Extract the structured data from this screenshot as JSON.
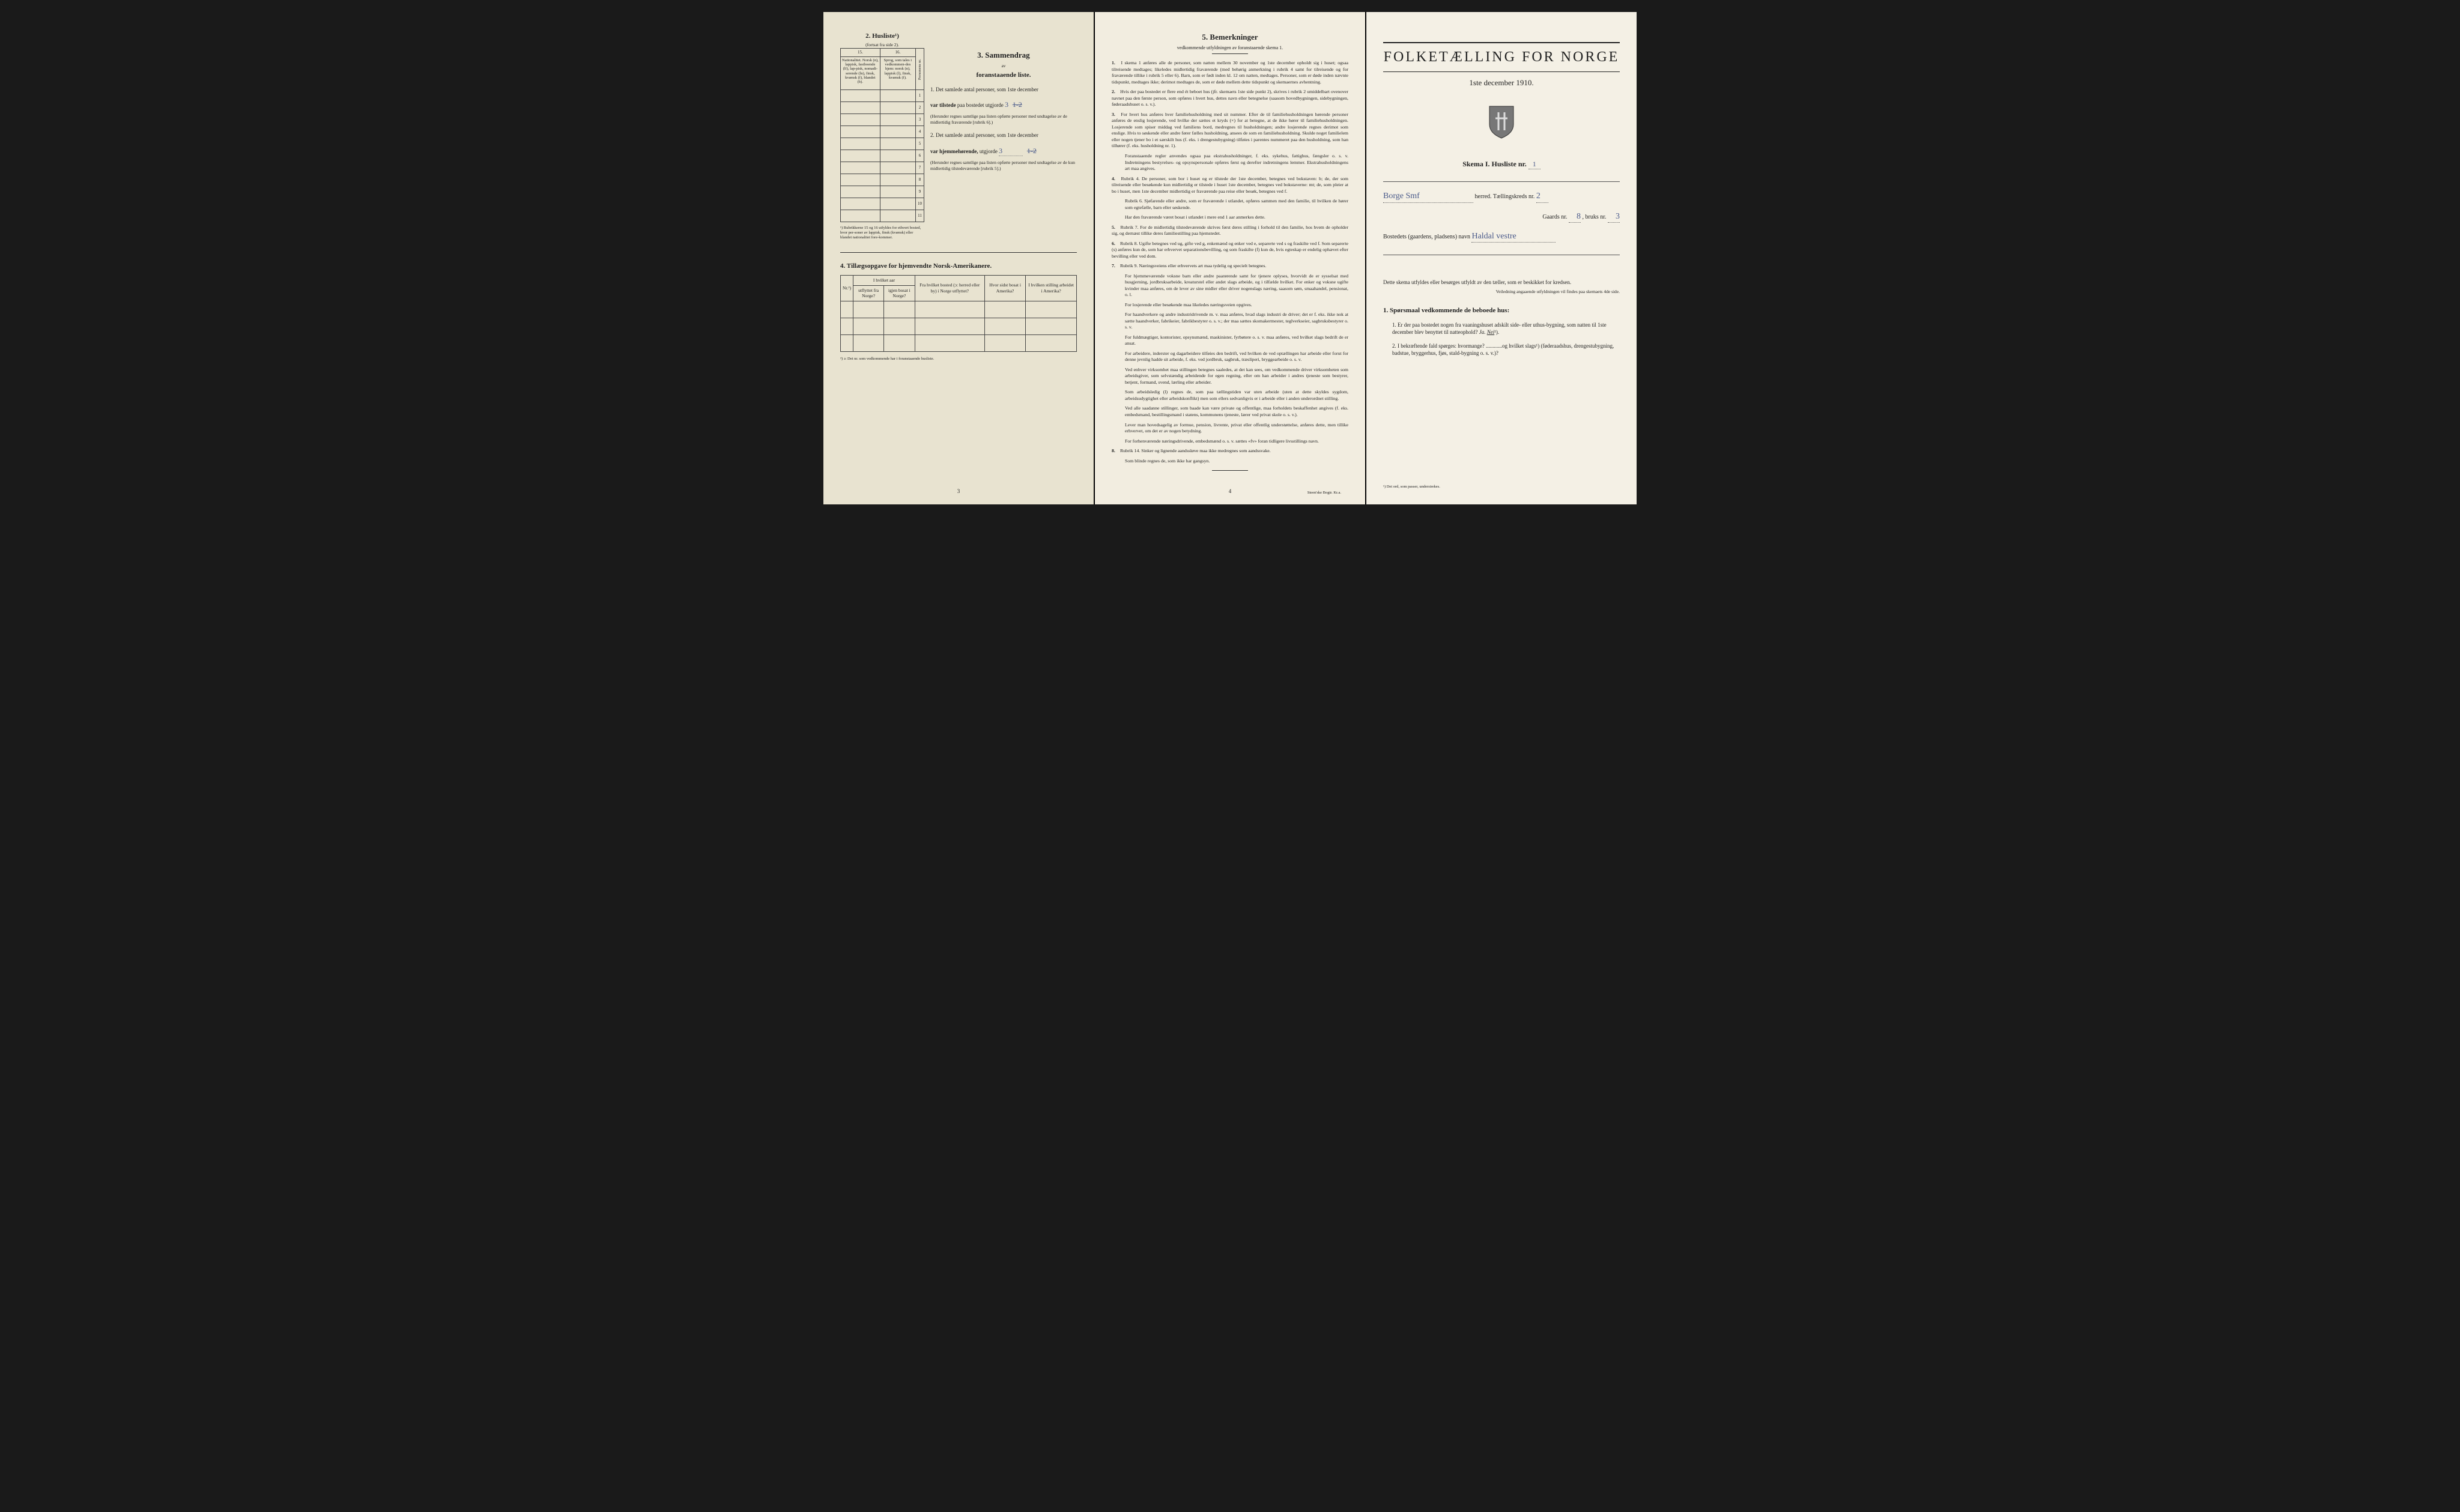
{
  "page_left": {
    "section2": {
      "title": "2. Husliste¹)",
      "subtitle": "(fortsat fra side 2).",
      "cols": [
        "15.",
        "16."
      ],
      "col_headers": [
        "Nationalitet. Norsk (n), lappisk, fastboende (lf), lap-pisk, nomadi-serende (ln), finsk, kvænsk (f), blandet (b).",
        "Sprog, som tales i vedkommen-des hjem: norsk (n), lappisk (l), finsk, kvænsk (f)."
      ],
      "side_header": "Personens nr.",
      "row_nums": [
        "1",
        "2",
        "3",
        "4",
        "5",
        "6",
        "7",
        "8",
        "9",
        "10",
        "11"
      ],
      "footnote": "¹) Rubrikkerne 15 og 16 utfyldes for ethvert bosted, hvor per-soner av lappisk, finsk (kvænsk) eller blandet nationalitet fore-kommer."
    },
    "section3": {
      "title": "3. Sammendrag",
      "subtitle_line1": "av",
      "subtitle_line2": "foranstaaende liste.",
      "item1_prefix": "1.",
      "item1_text": "Det samlede antal personer, som 1ste december",
      "item1_line2_a": "var tilstede",
      "item1_line2_b": "paa bostedet utgjorde",
      "item1_value": "3",
      "item1_strike": "1-2",
      "item1_note": "(Herunder regnes samtlige paa listen opførte personer med undtagelse av de midlertidig fraværende [rubrik 6].)",
      "item2_prefix": "2.",
      "item2_text": "Det samlede antal personer, som 1ste december",
      "item2_line2_a": "var hjemmehørende,",
      "item2_line2_b": "utgjorde",
      "item2_value": "3",
      "item2_strike": "1-2",
      "item2_note": "(Herunder regnes samtlige paa listen opførte personer med undtagelse av de kun midlertidig tilstedeværende [rubrik 5].)"
    },
    "section4": {
      "title": "4. Tillægsopgave for hjemvendte Norsk-Amerikanere.",
      "headers": {
        "nr": "Nr.²)",
        "ihvilket": "I hvilket aar",
        "utflyttet": "utflyttet fra Norge?",
        "igjen": "igjen bosat i Norge?",
        "fra": "Fra hvilket bosted (ɔ: herred eller by) i Norge utflyttet?",
        "hvor": "Hvor sidst bosat i Amerika?",
        "stilling": "I hvilken stilling arbeidet i Amerika?"
      },
      "footnote": "²) ɔ: Det nr. som vedkommende har i foranstaaende husliste."
    },
    "page_num": "3"
  },
  "page_middle": {
    "title": "5. Bemerkninger",
    "subtitle": "vedkommende utfyldningen av foranstaaende skema 1.",
    "items": [
      {
        "n": "1.",
        "text": "I skema 1 anføres alle de personer, som natten mellem 30 november og 1ste december opholdt sig i huset; ogsaa tilreisende medtages; likeledes midlertidig fraværende (med behørig anmerkning i rubrik 4 samt for tilreisende og for fraværende tillike i rubrik 5 eller 6). Barn, som er født inden kl. 12 om natten, medtages. Personer, som er døde inden nævnte tidspunkt, medtages ikke; derimot medtages de, som er døde mellem dette tidspunkt og skemaernes avhentning."
      },
      {
        "n": "2.",
        "text": "Hvis der paa bostedet er flere end ét beboet hus (jfr. skemaets 1ste side punkt 2), skrives i rubrik 2 umiddelbart ovenover navnet paa den første person, som opføres i hvert hus, dettes navn eller betegnelse (saasom hovedbygningen, sidebygningen, føderaadshuset o. s. v.)."
      },
      {
        "n": "3.",
        "text": "For hvert hus anføres hver familiehusholdning med sit nummer. Efter de til familiehusholdningen hørende personer anføres de enslig losjerende, ved hvilke der sættes et kryds (×) for at betegne, at de ikke hører til familiehusholdningen. Losjerende som spiser middag ved familiens bord, medregnes til husholdningen; andre losjerende regnes derimot som enslige. Hvis to søskende eller andre fører fælles husholdning, ansees de som en familiehusholdning. Skulde noget familielem eller nogen tjener bo i et særskilt hus (f. eks. i drengestubygning) tilføies i parentes nummeret paa den husholdning, som han tilhører (f. eks. husholdning nr. 1).",
        "subs": [
          "Foranstaaende regler anvendes ogsaa paa ekstrahusholdninger, f. eks. sykehus, fattighus, fængsler o. s. v. Indretningens bestyrelses- og opsynspersonale opføres først og derefter indretningens lemmer. Ekstrahusholdningens art maa angives."
        ]
      },
      {
        "n": "4.",
        "text": "Rubrik 4. De personer, som bor i huset og er tilstede der 1ste december, betegnes ved bokstaven: b; de, der som tilreisende eller besøkende kun midlertidig er tilstede i huset 1ste december, betegnes ved bokstaverne: mt; de, som pleier at bo i huset, men 1ste december midlertidig er fraværende paa reise eller besøk, betegnes ved f.",
        "subs": [
          "Rubrik 6. Sjøfarende eller andre, som er fraværende i utlandet, opføres sammen med den familie, til hvilken de hører som egtefælle, barn eller søskende.",
          "Har den fraværende været bosat i utlandet i mere end 1 aar anmerkes dette."
        ]
      },
      {
        "n": "5.",
        "text": "Rubrik 7. For de midlertidig tilstedeværende skrives først deres stilling i forhold til den familie, hos hvem de opholder sig, og dernæst tillike deres familiestilling paa hjemstedet."
      },
      {
        "n": "6.",
        "text": "Rubrik 8. Ugifte betegnes ved ug, gifte ved g, enkemænd og enker ved e, separerte ved s og fraskilte ved f. Som separerte (s) anføres kun de, som har erhvervet separationsbevilling, og som fraskilte (f) kun de, hvis egteskap er endelig ophævet efter bevilling eller ved dom."
      },
      {
        "n": "7.",
        "text": "Rubrik 9. Næringsveiens eller erhvervets art maa tydelig og specielt betegnes.",
        "subs": [
          "For hjemmeværende voksne barn eller andre paarørende samt for tjenere oplyses, hvorvidt de er sysselsat med husgjerning, jordbruksarbeide, kreaturstel eller andet slags arbeide, og i tilfælde hvilket. For enker og voksne ugifte kvinder maa anføres, om de lever av sine midler eller driver nogenslags næring, saasom søm, smaahandel, pensionat, o. l.",
          "For losjerende eller besøkende maa likeledes næringsveien opgives.",
          "For haandverkere og andre industridrivende m. v. maa anføres, hvad slags industri de driver; det er f. eks. ikke nok at sætte haandverker, fabrikeier, fabrikbestyrer o. s. v.; der maa sættes skomakermester, teglverkseier, sagbruksbestyrer o. s. v.",
          "For fuldmægtiger, kontorister, opsynsmænd, maskinister, fyrbøtere o. s. v. maa anføres, ved hvilket slags bedrift de er ansat.",
          "For arbeidere, inderster og dagarbeidere tilføies den bedrift, ved hvilken de ved optællingen har arbeide eller forut for denne jevnlig hadde sit arbeide, f. eks. ved jordbruk, sagbruk, træsliperi, bryggearbeide o. s. v.",
          "Ved enhver virksomhet maa stillingen betegnes saaledes, at det kan sees, om vedkommende driver virksomheten som arbeidsgiver, som selvstændig arbeidende for egen regning, eller om han arbeider i andres tjeneste som bestyrer, betjent, formand, svend, lærling eller arbeider.",
          "Som arbeidsledig (l) regnes de, som paa tællingstiden var uten arbeide (uten at dette skyldes sygdom, arbeidsudygtighet eller arbeidskonflikt) men som ellers sedvanligvis er i arbeide eller i anden underordnet stilling.",
          "Ved alle saadanne stillinger, som baade kan være private og offentlige, maa forholdets beskaffenhet angives (f. eks. embedsmand, bestillingsmand i statens, kommunens tjeneste, lærer ved privat skole o. s. v.).",
          "Lever man hovedsagelig av formue, pension, livrente, privat eller offentlig understøttelse, anføres dette, men tillike erhvervet, om det er av nogen betydning.",
          "For forhenværende næringsdrivende, embedsmænd o. s. v. sættes «fv» foran tidligere livsstillings navn."
        ]
      },
      {
        "n": "8.",
        "text": "Rubrik 14. Sinker og lignende aandssløve maa ikke medregnes som aandssvake.",
        "subs": [
          "Som blinde regnes de, som ikke har gangsyn."
        ]
      }
    ],
    "page_num": "4",
    "printer": "Steen'ske Bogtr. Kr.a."
  },
  "page_right": {
    "title": "FOLKETÆLLING FOR NORGE",
    "date": "1ste december 1910.",
    "skema": "Skema I. Husliste nr.",
    "skema_val": "1",
    "line1_val": "Borge Smf",
    "line1_label": "herred. Tællingskreds nr.",
    "line1_val2": "2",
    "line2_a": "Gaards nr.",
    "line2_a_val": "8",
    "line2_b": ", bruks nr.",
    "line2_b_val": "3",
    "line3_label": "Bostedets (gaardens, pladsens) navn",
    "line3_val": "Haldal vestre",
    "bottom_text": "Dette skema utfyldes eller besørges utfyldt av den tæller, som er beskikket for kredsen.",
    "bottom_note": "Veiledning angaaende utfyldningen vil findes paa skemaets 4de side.",
    "section1_title": "1. Spørsmaal vedkommende de beboede hus:",
    "q1": "Er der paa bostedet nogen fra vaaningshuset adskilt side- eller uthus-bygning, som natten til 1ste december blev benyttet til natteophold?",
    "q1_ja": "Ja.",
    "q1_nei": "Nei",
    "q1_sup": "¹).",
    "q2": "I bekræftende fald spørges: hvormange? ............og hvilket slags¹) (føderaadshus, drengestubygning, badstue, bryggerhus, fjøs, stald-bygning o. s. v.)?",
    "footnote": "¹) Det ord, som passer, understrekes."
  }
}
